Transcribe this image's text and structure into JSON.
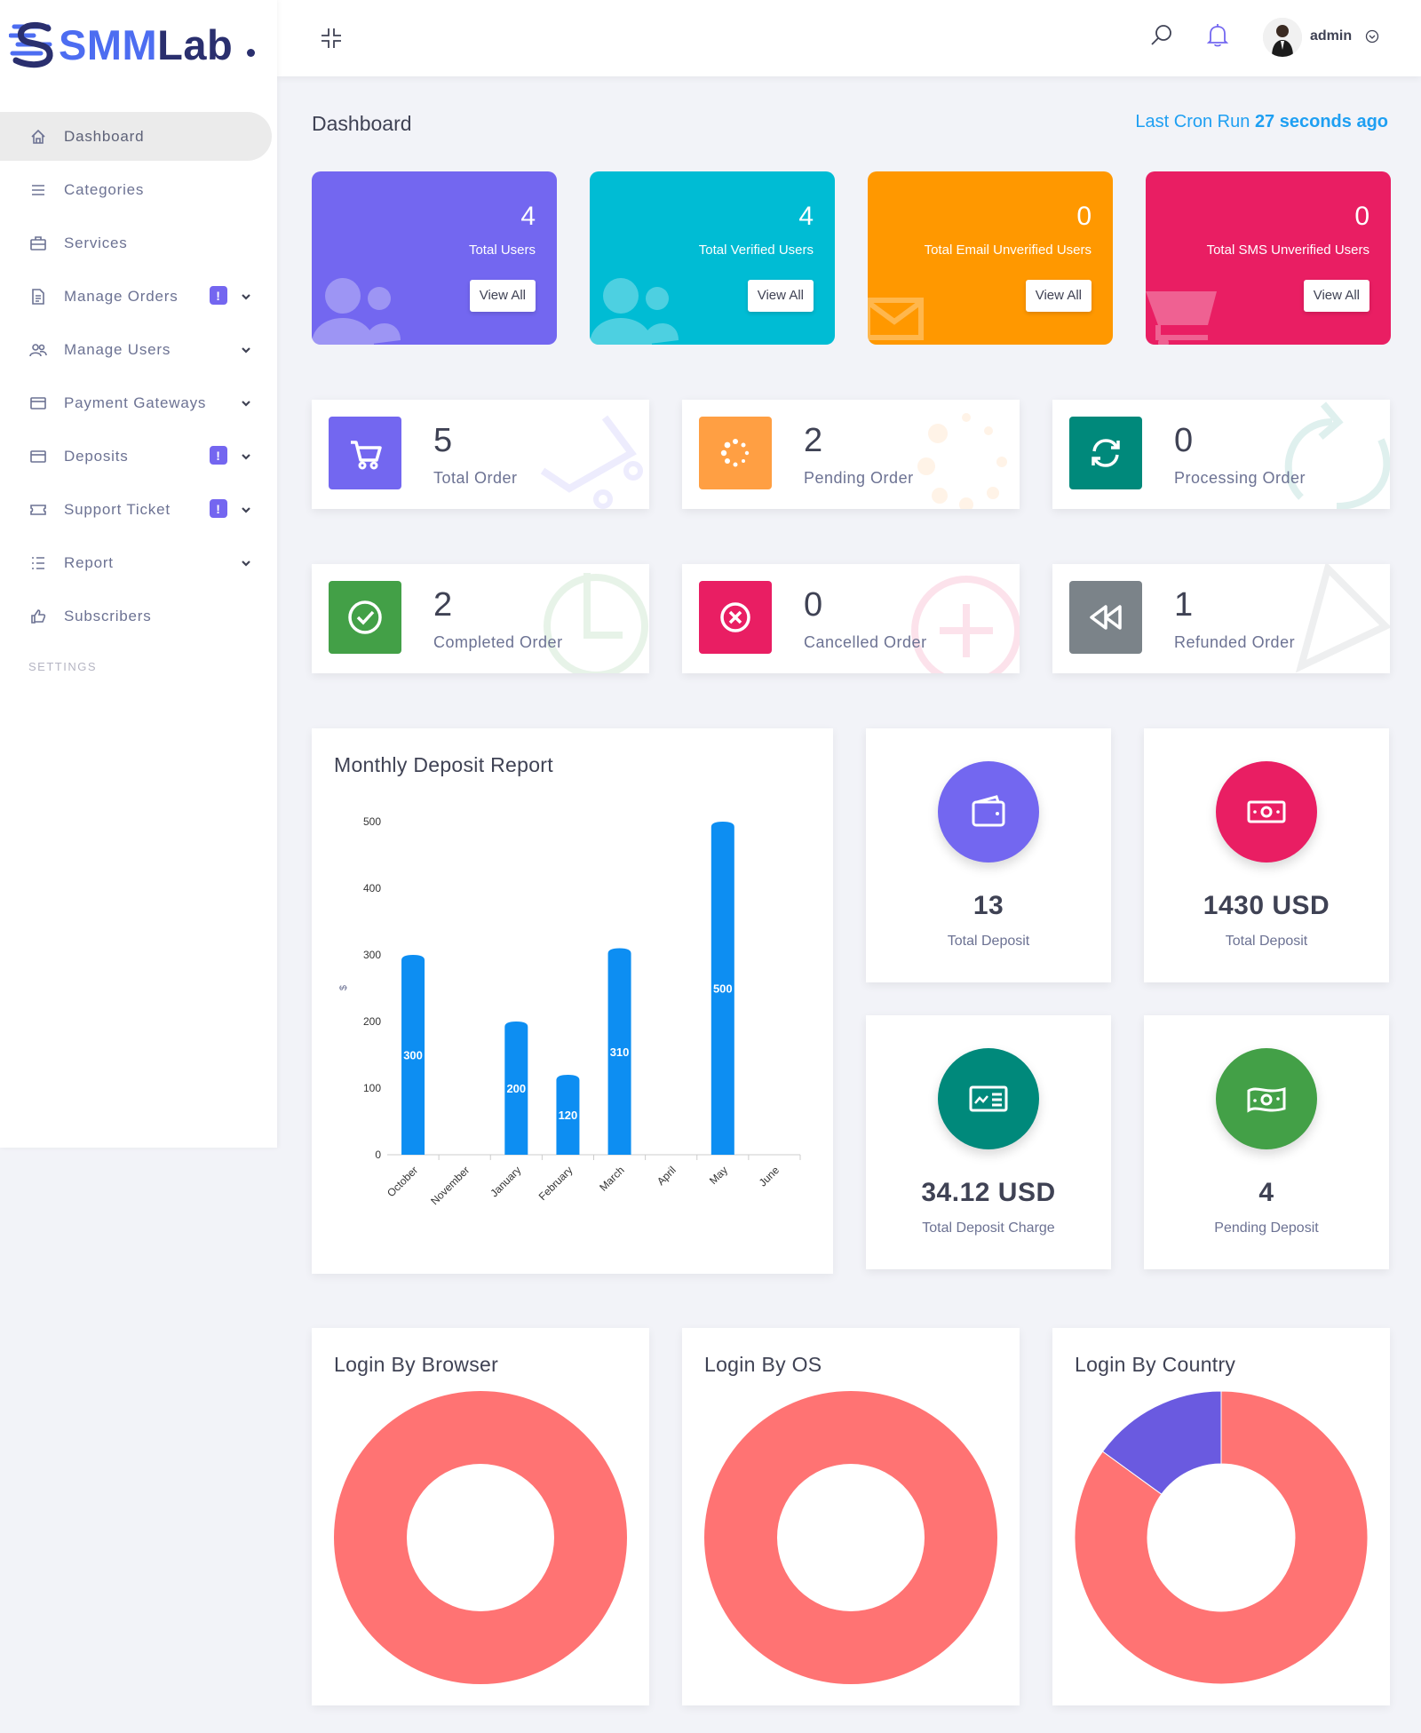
{
  "brand": {
    "name_part1": "SMM",
    "name_part2": "Lab"
  },
  "sidebar": {
    "items": [
      {
        "label": "Dashboard",
        "icon": "home-icon",
        "badge": "",
        "chevron": false,
        "active": true
      },
      {
        "label": "Categories",
        "icon": "list-icon",
        "badge": "",
        "chevron": false,
        "active": false
      },
      {
        "label": "Services",
        "icon": "briefcase-icon",
        "badge": "",
        "chevron": false,
        "active": false
      },
      {
        "label": "Manage Orders",
        "icon": "document-icon",
        "badge": "!",
        "chevron": true,
        "active": false
      },
      {
        "label": "Manage Users",
        "icon": "users-icon",
        "badge": "",
        "chevron": true,
        "active": false
      },
      {
        "label": "Payment Gateways",
        "icon": "credit-card-icon",
        "badge": "",
        "chevron": true,
        "active": false
      },
      {
        "label": "Deposits",
        "icon": "credit-card-icon",
        "badge": "!",
        "chevron": true,
        "active": false
      },
      {
        "label": "Support Ticket",
        "icon": "ticket-icon",
        "badge": "!",
        "chevron": true,
        "active": false
      },
      {
        "label": "Report",
        "icon": "report-list-icon",
        "badge": "",
        "chevron": true,
        "active": false
      },
      {
        "label": "Subscribers",
        "icon": "thumbs-up-icon",
        "badge": "",
        "chevron": false,
        "active": false
      }
    ],
    "section_label": "SETTINGS"
  },
  "topbar": {
    "user_name": "admin"
  },
  "page": {
    "title": "Dashboard",
    "cron_prefix": "Last Cron Run",
    "cron_value": "27 seconds ago"
  },
  "colors": {
    "purple": "#7367f0",
    "cyan": "#00b8d4",
    "orange": "#ff9800",
    "pink": "#e91e63",
    "green": "#43a047",
    "teal": "#00897b",
    "grey": "#7b8389",
    "orange_light": "#ff9f43",
    "bar_blue": "#0d8ef2",
    "donut_red": "#ff7373",
    "donut_purple": "#6a5ae0"
  },
  "user_stats": [
    {
      "value": "4",
      "label": "Total Users",
      "button": "View All",
      "color": "#7367f0",
      "icon": "users-icon"
    },
    {
      "value": "4",
      "label": "Total Verified Users",
      "button": "View All",
      "color": "#00bcd4",
      "icon": "users-icon"
    },
    {
      "value": "0",
      "label": "Total Email Unverified Users",
      "button": "View All",
      "color": "#ff9800",
      "icon": "envelope-icon"
    },
    {
      "value": "0",
      "label": "Total SMS Unverified Users",
      "button": "View All",
      "color": "#e91e63",
      "icon": "cart-icon"
    }
  ],
  "orders": [
    {
      "value": "5",
      "label": "Total Order",
      "color": "#7367f0",
      "icon": "cart-icon"
    },
    {
      "value": "2",
      "label": "Pending Order",
      "color": "#ff9f43",
      "icon": "spinner-icon"
    },
    {
      "value": "0",
      "label": "Processing Order",
      "color": "#00897b",
      "icon": "refresh-icon"
    },
    {
      "value": "2",
      "label": "Completed Order",
      "color": "#43a047",
      "icon": "check-circle-icon"
    },
    {
      "value": "0",
      "label": "Cancelled Order",
      "color": "#e91e63",
      "icon": "x-circle-icon"
    },
    {
      "value": "1",
      "label": "Refunded Order",
      "color": "#7b8389",
      "icon": "rewind-icon"
    }
  ],
  "deposit_report": {
    "title": "Monthly Deposit Report"
  },
  "chart_data": [
    {
      "type": "bar",
      "title": "Monthly Deposit Report",
      "xlabel": "",
      "ylabel": "$",
      "categories": [
        "October",
        "November",
        "January",
        "February",
        "March",
        "April",
        "May",
        "June"
      ],
      "values": [
        300,
        0,
        200,
        120,
        310,
        0,
        500,
        0
      ],
      "data_labels": [
        "300",
        "",
        "200",
        "120",
        "310",
        "",
        "500",
        ""
      ],
      "yticks": [
        "0",
        "100",
        "200",
        "300",
        "400",
        "500"
      ],
      "ylim": [
        0,
        500
      ],
      "grid": false,
      "color": "#0d8ef2"
    },
    {
      "type": "pie",
      "title": "Login By Browser",
      "values": [
        100
      ],
      "colors": [
        "#ff7373"
      ]
    },
    {
      "type": "pie",
      "title": "Login By OS",
      "values": [
        100
      ],
      "colors": [
        "#ff7373"
      ]
    },
    {
      "type": "pie",
      "title": "Login By Country",
      "values": [
        85,
        15
      ],
      "colors": [
        "#ff7373",
        "#6a5ae0"
      ]
    }
  ],
  "deposit_stats": [
    {
      "value": "13",
      "label": "Total Deposit",
      "color": "#7367f0",
      "icon": "wallet-icon"
    },
    {
      "value": "1430 USD",
      "label": "Total Deposit",
      "color": "#e91e63",
      "icon": "money-icon"
    },
    {
      "value": "34.12 USD",
      "label": "Total Deposit Charge",
      "color": "#00897b",
      "icon": "receipt-card-icon"
    },
    {
      "value": "4",
      "label": "Pending Deposit",
      "color": "#43a047",
      "icon": "money-wave-icon"
    }
  ],
  "login_panels": [
    {
      "title": "Login By Browser"
    },
    {
      "title": "Login By OS"
    },
    {
      "title": "Login By Country"
    }
  ]
}
